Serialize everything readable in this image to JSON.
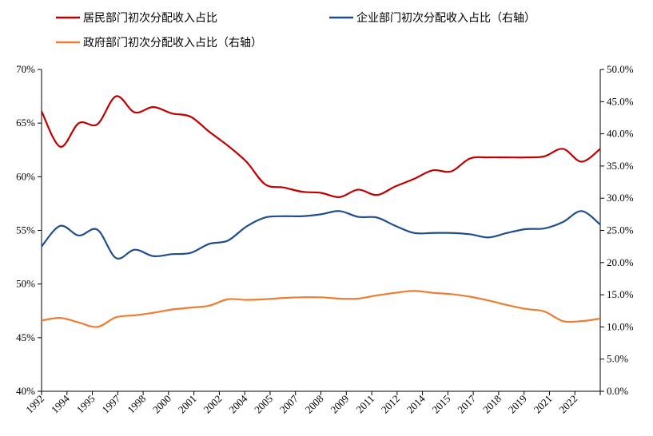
{
  "chart_data": {
    "type": "line",
    "legend_placement": "top",
    "grid": false,
    "x_tick_labels": [
      "1992",
      "1994",
      "1995",
      "1997",
      "1998",
      "2000",
      "2001",
      "2002",
      "2004",
      "2005",
      "2007",
      "2008",
      "2009",
      "2011",
      "2012",
      "2014",
      "2015",
      "2017",
      "2018",
      "2019",
      "2021",
      "2022"
    ],
    "y_left": {
      "ylim": [
        40,
        70
      ],
      "ticks": [
        "40%",
        "45%",
        "50%",
        "55%",
        "60%",
        "65%",
        "70%"
      ]
    },
    "y_right": {
      "ylim": [
        0,
        50
      ],
      "ticks": [
        "0.0%",
        "5.0%",
        "10.0%",
        "15.0%",
        "20.0%",
        "25.0%",
        "30.0%",
        "35.0%",
        "40.0%",
        "45.0%",
        "50.0%"
      ]
    },
    "x": [
      1992,
      1993,
      1994,
      1995,
      1996,
      1997,
      1998,
      1999,
      2000,
      2001,
      2002,
      2003,
      2004,
      2005,
      2006,
      2007,
      2008,
      2009,
      2010,
      2011,
      2012,
      2013,
      2014,
      2015,
      2016,
      2017,
      2018,
      2019,
      2020,
      2021,
      2022
    ],
    "series": [
      {
        "name": "居民部门初次分配收入占比",
        "axis": "left",
        "color": "#C00000",
        "values": [
          66.1,
          62.8,
          65.0,
          64.9,
          67.5,
          66.0,
          66.5,
          65.9,
          65.6,
          64.2,
          62.9,
          61.4,
          59.3,
          59.0,
          58.6,
          58.5,
          58.1,
          58.8,
          58.3,
          59.1,
          59.8,
          60.6,
          60.5,
          61.7,
          61.8,
          61.8,
          61.8,
          61.9,
          62.6,
          61.4,
          62.6
        ]
      },
      {
        "name": "企业部门初次分配收入占比（右轴）",
        "axis": "right",
        "color": "#1F4E8C",
        "values": [
          22.5,
          25.7,
          24.2,
          25.1,
          20.7,
          22.0,
          21.0,
          21.3,
          21.5,
          22.9,
          23.4,
          25.6,
          27.0,
          27.2,
          27.2,
          27.5,
          28.0,
          27.1,
          27.0,
          25.7,
          24.6,
          24.6,
          24.6,
          24.4,
          23.9,
          24.6,
          25.2,
          25.3,
          26.3,
          28.0,
          25.9
        ]
      },
      {
        "name": "政府部门初次分配收入占比（右轴）",
        "axis": "right",
        "color": "#ED7D31",
        "values": [
          11.0,
          11.4,
          10.7,
          10.0,
          11.5,
          11.8,
          12.2,
          12.7,
          13.0,
          13.3,
          14.3,
          14.2,
          14.3,
          14.5,
          14.6,
          14.6,
          14.4,
          14.4,
          14.9,
          15.3,
          15.6,
          15.3,
          15.1,
          14.7,
          14.1,
          13.4,
          12.8,
          12.4,
          10.9,
          10.9,
          11.3
        ]
      }
    ]
  }
}
